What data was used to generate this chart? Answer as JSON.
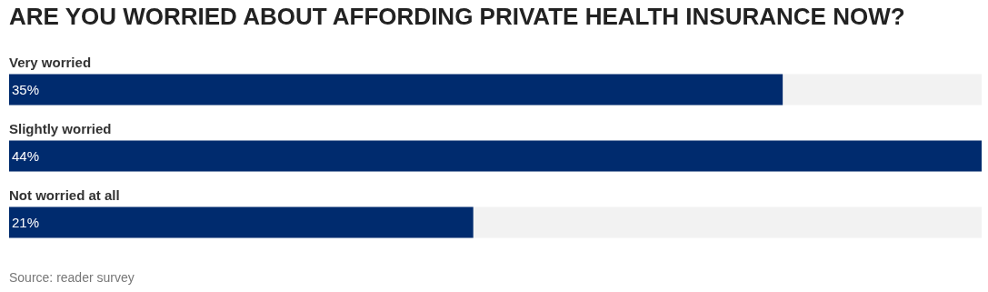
{
  "chart_data": {
    "type": "bar",
    "orientation": "horizontal",
    "title": "ARE YOU WORRIED ABOUT AFFORDING PRIVATE HEALTH INSURANCE NOW?",
    "categories": [
      "Very worried",
      "Slightly worried",
      "Not worried at all"
    ],
    "values": [
      35,
      44,
      21
    ],
    "color": "#002b6e",
    "value_labels": [
      "35%",
      "44%",
      "21%"
    ],
    "xlim": [
      0,
      44
    ],
    "tick_labels": false,
    "annotations": [
      "Source: reader survey"
    ]
  }
}
